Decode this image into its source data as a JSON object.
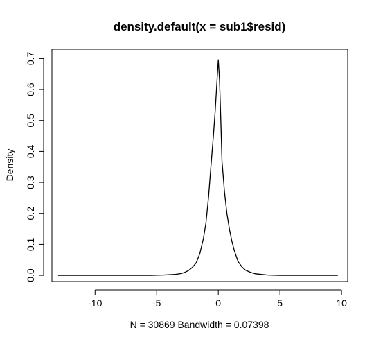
{
  "chart_data": {
    "type": "line",
    "title": "density.default(x = sub1$resid)",
    "xlabel": "N = 30869   Bandwidth = 0.07398",
    "ylabel": "Density",
    "xlim": [
      -13.5,
      10.5
    ],
    "ylim": [
      -0.02,
      0.73
    ],
    "x_ticks": [
      -10,
      -5,
      0,
      5,
      10
    ],
    "x_tick_labels": [
      "-10",
      "-5",
      "0",
      "5",
      "10"
    ],
    "y_ticks": [
      0.0,
      0.1,
      0.2,
      0.3,
      0.4,
      0.5,
      0.6,
      0.7
    ],
    "y_tick_labels": [
      "0.0",
      "0.1",
      "0.2",
      "0.3",
      "0.4",
      "0.5",
      "0.6",
      "0.7"
    ],
    "grid": false,
    "series": [
      {
        "color": "#000000",
        "x": [
          -13.0,
          -11.0,
          -9.0,
          -7.0,
          -5.5,
          -4.5,
          -4.0,
          -3.5,
          -3.0,
          -2.7,
          -2.4,
          -2.1,
          -1.8,
          -1.5,
          -1.2,
          -1.0,
          -0.8,
          -0.6,
          -0.4,
          -0.25,
          -0.1,
          0.0,
          0.1,
          0.2,
          0.3,
          0.5,
          0.7,
          0.9,
          1.1,
          1.3,
          1.6,
          1.9,
          2.2,
          2.6,
          3.0,
          3.5,
          4.0,
          5.0,
          6.0,
          8.0,
          9.7
        ],
        "y": [
          0.0,
          0.0,
          0.0,
          0.0,
          0.0,
          0.001,
          0.002,
          0.003,
          0.006,
          0.01,
          0.016,
          0.026,
          0.04,
          0.07,
          0.12,
          0.17,
          0.25,
          0.35,
          0.45,
          0.53,
          0.63,
          0.696,
          0.63,
          0.51,
          0.37,
          0.27,
          0.2,
          0.15,
          0.11,
          0.08,
          0.045,
          0.028,
          0.017,
          0.01,
          0.005,
          0.003,
          0.001,
          0.0,
          0.0,
          0.0,
          0.0
        ]
      }
    ]
  }
}
